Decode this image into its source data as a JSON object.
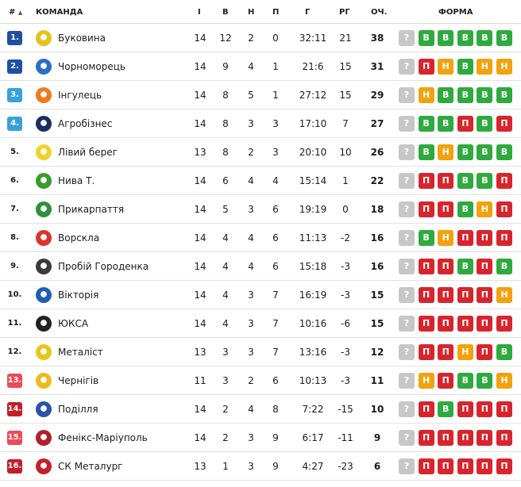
{
  "header": {
    "rank": "#",
    "rank_sort": "▲",
    "team": "КОМАНДА",
    "played": "І",
    "won": "В",
    "drawn": "Н",
    "lost": "П",
    "goals": "Г",
    "diff": "РГ",
    "points": "ОЧ.",
    "form": "ФОРМА"
  },
  "colors": {
    "promotion": "#1f4fa3",
    "playoff": "#3aa0dc",
    "relegation_playoff": "#ee4b56",
    "relegation": "#c41e28",
    "win": "#2faa3f",
    "loss": "#d8252d",
    "draw": "#f2a20e",
    "upcoming": "#c7c7c7"
  },
  "form_labels": {
    "W": "В",
    "L": "П",
    "D": "Н",
    "q": "?"
  },
  "rows": [
    {
      "rank": "1.",
      "zone": "promotion",
      "team": "Буковина",
      "logo_icon": "bukovyna-crest-icon",
      "logo_color": "#e6c21c",
      "p": "14",
      "w": "12",
      "d": "2",
      "l": "0",
      "g": "32:11",
      "gd": "21",
      "pts": "38",
      "form": [
        "q",
        "W",
        "W",
        "W",
        "W",
        "W"
      ]
    },
    {
      "rank": "2.",
      "zone": "promotion",
      "team": "Чорноморець",
      "logo_icon": "chornomorets-crest-icon",
      "logo_color": "#2b6dc9",
      "p": "14",
      "w": "9",
      "d": "4",
      "l": "1",
      "g": "21:6",
      "gd": "15",
      "pts": "31",
      "form": [
        "q",
        "L",
        "D",
        "W",
        "D",
        "D"
      ]
    },
    {
      "rank": "3.",
      "zone": "playoff",
      "team": "Інгулець",
      "logo_icon": "inhulets-crest-icon",
      "logo_color": "#f07a1a",
      "p": "14",
      "w": "8",
      "d": "5",
      "l": "1",
      "g": "27:12",
      "gd": "15",
      "pts": "29",
      "form": [
        "q",
        "D",
        "W",
        "W",
        "W",
        "W"
      ]
    },
    {
      "rank": "4.",
      "zone": "playoff",
      "team": "Агробізнес",
      "logo_icon": "ahrobiznes-crest-icon",
      "logo_color": "#1c2d63",
      "p": "14",
      "w": "8",
      "d": "3",
      "l": "3",
      "g": "17:10",
      "gd": "7",
      "pts": "27",
      "form": [
        "q",
        "W",
        "W",
        "L",
        "W",
        "L"
      ]
    },
    {
      "rank": "5.",
      "zone": "none",
      "team": "Лівий берег",
      "logo_icon": "livyi-bereh-crest-icon",
      "logo_color": "#f0d22a",
      "p": "13",
      "w": "8",
      "d": "2",
      "l": "3",
      "g": "20:10",
      "gd": "10",
      "pts": "26",
      "form": [
        "q",
        "W",
        "D",
        "W",
        "W",
        "W"
      ]
    },
    {
      "rank": "6.",
      "zone": "none",
      "team": "Нива Т.",
      "logo_icon": "nyva-crest-icon",
      "logo_color": "#3c9b2f",
      "p": "14",
      "w": "6",
      "d": "4",
      "l": "4",
      "g": "15:14",
      "gd": "1",
      "pts": "22",
      "form": [
        "q",
        "L",
        "L",
        "W",
        "W",
        "L"
      ]
    },
    {
      "rank": "7.",
      "zone": "none",
      "team": "Прикарпаття",
      "logo_icon": "prykarpattia-crest-icon",
      "logo_color": "#2f8f3a",
      "p": "14",
      "w": "5",
      "d": "3",
      "l": "6",
      "g": "19:19",
      "gd": "0",
      "pts": "18",
      "form": [
        "q",
        "L",
        "L",
        "W",
        "D",
        "L"
      ]
    },
    {
      "rank": "8.",
      "zone": "none",
      "team": "Ворскла",
      "logo_icon": "vorskla-crest-icon",
      "logo_color": "#d9342b",
      "p": "14",
      "w": "4",
      "d": "4",
      "l": "6",
      "g": "11:13",
      "gd": "-2",
      "pts": "16",
      "form": [
        "q",
        "W",
        "D",
        "L",
        "L",
        "L"
      ]
    },
    {
      "rank": "9.",
      "zone": "none",
      "team": "Пробій Городенка",
      "logo_icon": "probiy-crest-icon",
      "logo_color": "#3a3a3a",
      "p": "14",
      "w": "4",
      "d": "4",
      "l": "6",
      "g": "15:18",
      "gd": "-3",
      "pts": "16",
      "form": [
        "q",
        "L",
        "L",
        "W",
        "L",
        "W"
      ]
    },
    {
      "rank": "10.",
      "zone": "none",
      "team": "Вікторія",
      "logo_icon": "viktoriia-crest-icon",
      "logo_color": "#1f5fb3",
      "p": "14",
      "w": "4",
      "d": "3",
      "l": "7",
      "g": "16:19",
      "gd": "-3",
      "pts": "15",
      "form": [
        "q",
        "L",
        "L",
        "L",
        "L",
        "D"
      ]
    },
    {
      "rank": "11.",
      "zone": "none",
      "team": "ЮКСА",
      "logo_icon": "yuksa-crest-icon",
      "logo_color": "#222222",
      "p": "14",
      "w": "4",
      "d": "3",
      "l": "7",
      "g": "10:16",
      "gd": "-6",
      "pts": "15",
      "form": [
        "q",
        "L",
        "L",
        "L",
        "L",
        "L"
      ]
    },
    {
      "rank": "12.",
      "zone": "none",
      "team": "Металіст",
      "logo_icon": "metalist-crest-icon",
      "logo_color": "#e8c51a",
      "p": "13",
      "w": "3",
      "d": "3",
      "l": "7",
      "g": "13:16",
      "gd": "-3",
      "pts": "12",
      "form": [
        "q",
        "L",
        "L",
        "D",
        "L",
        "W"
      ]
    },
    {
      "rank": "13.",
      "zone": "relegation_playoff",
      "team": "Чернігів",
      "logo_icon": "chernihiv-crest-icon",
      "logo_color": "#f0b81a",
      "p": "11",
      "w": "3",
      "d": "2",
      "l": "6",
      "g": "10:13",
      "gd": "-3",
      "pts": "11",
      "form": [
        "q",
        "D",
        "L",
        "W",
        "W",
        "D"
      ]
    },
    {
      "rank": "14.",
      "zone": "relegation",
      "team": "Поділля",
      "logo_icon": "podillia-crest-icon",
      "logo_color": "#2a52a8",
      "p": "14",
      "w": "2",
      "d": "4",
      "l": "8",
      "g": "7:22",
      "gd": "-15",
      "pts": "10",
      "form": [
        "q",
        "L",
        "W",
        "L",
        "L",
        "L"
      ]
    },
    {
      "rank": "15.",
      "zone": "relegation_playoff",
      "team": "Фенікс-Маріуполь",
      "logo_icon": "feniks-crest-icon",
      "logo_color": "#b3202a",
      "p": "14",
      "w": "2",
      "d": "3",
      "l": "9",
      "g": "6:17",
      "gd": "-11",
      "pts": "9",
      "form": [
        "q",
        "L",
        "L",
        "L",
        "L",
        "L"
      ]
    },
    {
      "rank": "16.",
      "zone": "relegation",
      "team": "СК Металург",
      "logo_icon": "metalurh-crest-icon",
      "logo_color": "#c4202b",
      "p": "13",
      "w": "1",
      "d": "3",
      "l": "9",
      "g": "4:27",
      "gd": "-23",
      "pts": "6",
      "form": [
        "q",
        "L",
        "L",
        "L",
        "L",
        "L"
      ]
    }
  ]
}
